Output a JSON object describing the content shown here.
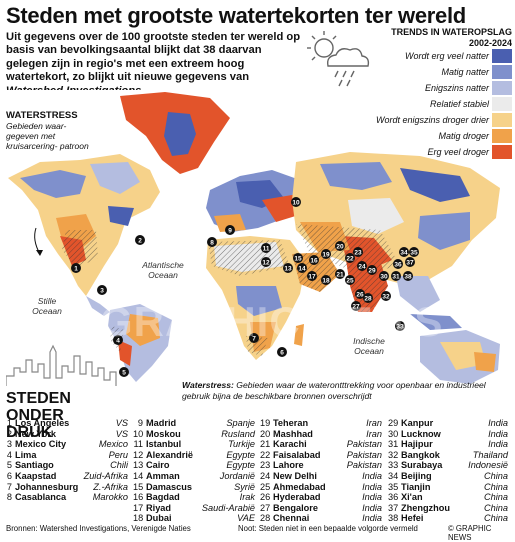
{
  "title": "Steden met grootste watertekorten ter wereld",
  "intro": {
    "text": "Uit gegevens over de 100 grootste steden ter wereld op basis van bevolkingsaantal blijkt dat 38 daarvan gelegen zijn in regio's met een extreem hoog watertekort, zo blijkt uit nieuwe gegevens van ",
    "source": "Watershed Investigations"
  },
  "legend": {
    "title_line1": "TRENDS IN WATEROPSLAG",
    "title_line2": "2002-2024",
    "items": [
      {
        "label": "Wordt erg veel natter",
        "color": "#4a5fb0"
      },
      {
        "label": "Matig natter",
        "color": "#7f90cc"
      },
      {
        "label": "Enigszins natter",
        "color": "#b4bde0"
      },
      {
        "label": "Relatief stabiel",
        "color": "#ebebeb"
      },
      {
        "label": "Wordt enigszins droger drier",
        "color": "#f6d28a"
      },
      {
        "label": "Matig droger",
        "color": "#f0a24a"
      },
      {
        "label": "Erg veel droger",
        "color": "#e2542b"
      }
    ]
  },
  "waterstress_label": {
    "heading": "WATERSTRESS",
    "desc": "Gebieden waar- gegeven met kruisarcering- patroon"
  },
  "oceans": {
    "atlantic": "Atlantische Oceaan",
    "pacific": "Stille Oceaan",
    "indian": "Indische Oceaan"
  },
  "waterstress_note": {
    "head": "Waterstress:",
    "text": " Gebieden waar de waterontttrekking voor openbaar en industrieel gebruik bijna de beschikbare bronnen overschrijdt"
  },
  "steden_heading": "STEDEN ONDER DRUK",
  "cities": [
    {
      "n": "1",
      "name": "Los Angeles",
      "country": "VS"
    },
    {
      "n": "2",
      "name": "New York",
      "country": "VS"
    },
    {
      "n": "3",
      "name": "Mexico City",
      "country": "Mexico"
    },
    {
      "n": "4",
      "name": "Lima",
      "country": "Peru"
    },
    {
      "n": "5",
      "name": "Santiago",
      "country": "Chili"
    },
    {
      "n": "6",
      "name": "Kaapstad",
      "country": "Zuid-Afrika"
    },
    {
      "n": "7",
      "name": "Johannesburg",
      "country": "Z.-Afrika"
    },
    {
      "n": "8",
      "name": "Casablanca",
      "country": "Marokko"
    },
    {
      "n": "9",
      "name": "Madrid",
      "country": "Spanje"
    },
    {
      "n": "10",
      "name": "Moskou",
      "country": "Rusland"
    },
    {
      "n": "11",
      "name": "Istanbul",
      "country": "Turkije"
    },
    {
      "n": "12",
      "name": "Alexandrië",
      "country": "Egypte"
    },
    {
      "n": "13",
      "name": "Cairo",
      "country": "Egypte"
    },
    {
      "n": "14",
      "name": "Amman",
      "country": "Jordanië"
    },
    {
      "n": "15",
      "name": "Damascus",
      "country": "Syrië"
    },
    {
      "n": "16",
      "name": "Bagdad",
      "country": "Irak"
    },
    {
      "n": "17",
      "name": "Riyad",
      "country": "Saudi-Arabië"
    },
    {
      "n": "18",
      "name": "Dubai",
      "country": "VAE"
    },
    {
      "n": "19",
      "name": "Teheran",
      "country": "Iran"
    },
    {
      "n": "20",
      "name": "Mashhad",
      "country": "Iran"
    },
    {
      "n": "21",
      "name": "Karachi",
      "country": "Pakistan"
    },
    {
      "n": "22",
      "name": "Faisalabad",
      "country": "Pakistan"
    },
    {
      "n": "23",
      "name": "Lahore",
      "country": "Pakistan"
    },
    {
      "n": "24",
      "name": "New Delhi",
      "country": "India"
    },
    {
      "n": "25",
      "name": "Ahmedabad",
      "country": "India"
    },
    {
      "n": "26",
      "name": "Hyderabad",
      "country": "India"
    },
    {
      "n": "27",
      "name": "Bengalore",
      "country": "India"
    },
    {
      "n": "28",
      "name": "Chennai",
      "country": "India"
    },
    {
      "n": "29",
      "name": "Kanpur",
      "country": "India"
    },
    {
      "n": "30",
      "name": "Lucknow",
      "country": "India"
    },
    {
      "n": "31",
      "name": "Hajipur",
      "country": "India"
    },
    {
      "n": "32",
      "name": "Bangkok",
      "country": "Thailand"
    },
    {
      "n": "33",
      "name": "Surabaya",
      "country": "Indonesië"
    },
    {
      "n": "34",
      "name": "Beijing",
      "country": "China"
    },
    {
      "n": "35",
      "name": "Tianjin",
      "country": "China"
    },
    {
      "n": "36",
      "name": "Xi'an",
      "country": "China"
    },
    {
      "n": "37",
      "name": "Zhengzhou",
      "country": "China"
    },
    {
      "n": "38",
      "name": "Hefei",
      "country": "China"
    }
  ],
  "footer": {
    "source": "Bronnen: Watershed Investigations, Verenigde Naties",
    "note": "Noot: Steden niet in een bepaalde volgorde vermeld",
    "logo": "© GRAPHIC NEWS"
  },
  "watermark": "GRAPHIC NEWS"
}
